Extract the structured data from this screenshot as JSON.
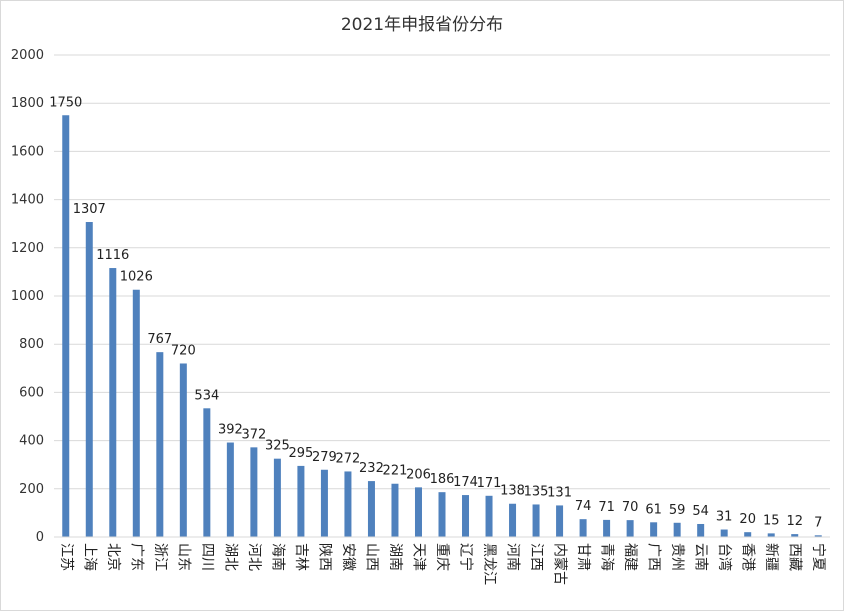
{
  "chart_data": {
    "type": "bar",
    "title": "2021年申报省份分布",
    "xlabel": "",
    "ylabel": "",
    "ylim": [
      0,
      2000
    ],
    "yticks": [
      0,
      200,
      400,
      600,
      800,
      1000,
      1200,
      1400,
      1600,
      1800,
      2000
    ],
    "grid": true,
    "legend": "none",
    "bar_color": "#4f81bd",
    "categories": [
      "江苏",
      "上海",
      "北京",
      "广东",
      "浙江",
      "山东",
      "四川",
      "湖北",
      "河北",
      "海南",
      "吉林",
      "陕西",
      "安徽",
      "山西",
      "湖南",
      "天津",
      "重庆",
      "辽宁",
      "黑龙江",
      "河南",
      "江西",
      "内蒙古",
      "甘肃",
      "青海",
      "福建",
      "广西",
      "贵州",
      "云南",
      "台湾",
      "香港",
      "新疆",
      "西藏",
      "宁夏"
    ],
    "values": [
      1750,
      1307,
      1116,
      1026,
      767,
      720,
      534,
      392,
      372,
      325,
      295,
      279,
      272,
      232,
      221,
      206,
      186,
      174,
      171,
      138,
      135,
      131,
      74,
      71,
      70,
      61,
      59,
      54,
      31,
      20,
      15,
      12,
      7
    ]
  }
}
